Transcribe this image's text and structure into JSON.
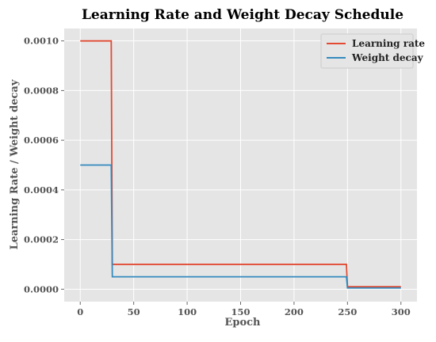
{
  "chart_data": {
    "type": "line",
    "title": "Learning Rate and Weight Decay Schedule",
    "xlabel": "Epoch",
    "ylabel": "Learning Rate / Weight decay",
    "xlim": [
      -15,
      315
    ],
    "ylim": [
      -5e-05,
      0.00105
    ],
    "xticks": [
      0,
      50,
      100,
      150,
      200,
      250,
      300
    ],
    "yticks": [
      0.0,
      0.0002,
      0.0004,
      0.0006,
      0.0008,
      0.001
    ],
    "ytick_labels": [
      "0.0000",
      "0.0002",
      "0.0004",
      "0.0006",
      "0.0008",
      "0.0010"
    ],
    "grid": true,
    "legend_position": "top-right",
    "series": [
      {
        "name": "Learning rate",
        "color": "#e24a33",
        "x": [
          0,
          29,
          30,
          249,
          250,
          300
        ],
        "y": [
          0.001,
          0.001,
          0.0001,
          0.0001,
          1e-05,
          1e-05
        ]
      },
      {
        "name": "Weight decay",
        "color": "#348abd",
        "x": [
          0,
          29,
          30,
          249,
          250,
          300
        ],
        "y": [
          0.0005,
          0.0005,
          5e-05,
          5e-05,
          5e-06,
          5e-06
        ]
      }
    ]
  }
}
